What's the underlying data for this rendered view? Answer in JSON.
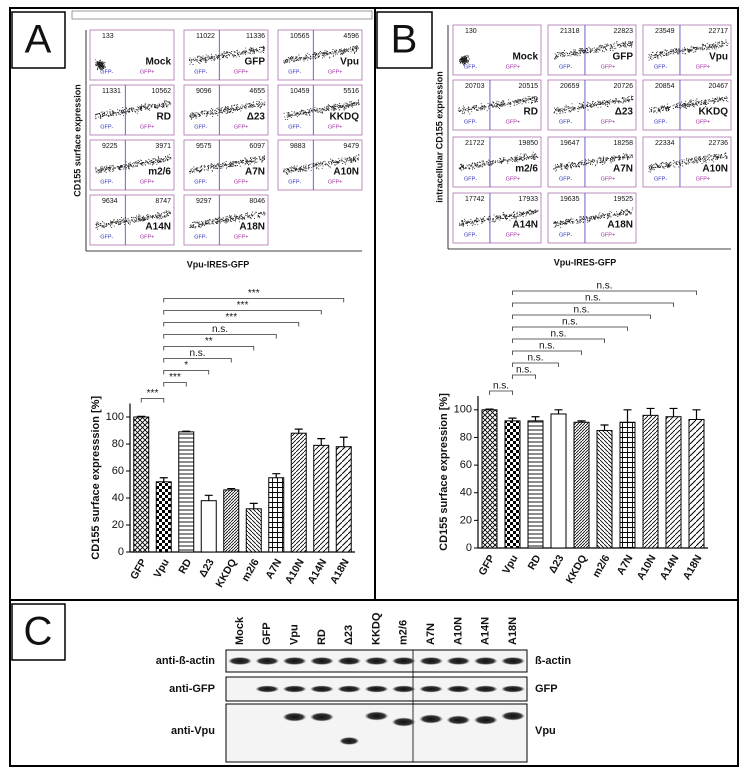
{
  "panels": {
    "a": "A",
    "b": "B",
    "c": "C"
  },
  "flow_A": {
    "y_label": "CD155 surface expression",
    "x_label": "Vpu-IRES-GFP",
    "gate_labels": [
      "GFP-",
      "GFP+"
    ],
    "plots": [
      {
        "name": "Mock",
        "left": 133
      },
      {
        "name": "GFP",
        "left": 11022,
        "right": 11336
      },
      {
        "name": "Vpu",
        "left": 10565,
        "right": 4596
      },
      {
        "name": "RD",
        "left": 11331,
        "right": 10562
      },
      {
        "name": "Δ23",
        "left": 9096,
        "right": 4655
      },
      {
        "name": "KKDQ",
        "left": 10459,
        "right": 5516
      },
      {
        "name": "m2/6",
        "left": 9225,
        "right": 3971
      },
      {
        "name": "A7N",
        "left": 9575,
        "right": 6097
      },
      {
        "name": "A10N",
        "left": 9883,
        "right": 9479
      },
      {
        "name": "A14N",
        "left": 9634,
        "right": 8747
      },
      {
        "name": "A18N",
        "left": 9297,
        "right": 8046
      }
    ]
  },
  "flow_B": {
    "y_label": "intracellular CD155 expression",
    "x_label": "Vpu-IRES-GFP",
    "gate_labels": [
      "GFP-",
      "GFP+"
    ],
    "plots": [
      {
        "name": "Mock",
        "left": 130
      },
      {
        "name": "GFP",
        "left": 21318,
        "right": 22823
      },
      {
        "name": "Vpu",
        "left": 23549,
        "right": 22717
      },
      {
        "name": "RD",
        "left": 20703,
        "right": 20515
      },
      {
        "name": "Δ23",
        "left": 20659,
        "right": 20726
      },
      {
        "name": "KKDQ",
        "left": 20854,
        "right": 20467
      },
      {
        "name": "m2/6",
        "left": 21722,
        "right": 19850
      },
      {
        "name": "A7N",
        "left": 19647,
        "right": 18258
      },
      {
        "name": "A10N",
        "left": 22334,
        "right": 22736
      },
      {
        "name": "A14N",
        "left": 17742,
        "right": 17933
      },
      {
        "name": "A18N",
        "left": 19635,
        "right": 19525
      }
    ]
  },
  "chart_data": [
    {
      "type": "bar",
      "y_label": "CD155 surface expresssion [%]",
      "categories": [
        "GFP",
        "Vpu",
        "RD",
        "Δ23",
        "KKDQ",
        "m2/6",
        "A7N",
        "A10N",
        "A14N",
        "A18N"
      ],
      "values": [
        100,
        52,
        89,
        38,
        46,
        32,
        55,
        88,
        79,
        78
      ],
      "errors": [
        0.5,
        3,
        0.5,
        4,
        1,
        4,
        3,
        3,
        5,
        7
      ],
      "ylim": [
        0,
        110
      ],
      "yticks": [
        0,
        20,
        40,
        60,
        80,
        100
      ],
      "brackets": [
        {
          "from": "GFP",
          "to": "Vpu",
          "label": "***"
        },
        {
          "from": "Vpu",
          "to": "RD",
          "label": "***"
        },
        {
          "from": "Vpu",
          "to": "Δ23",
          "label": "*"
        },
        {
          "from": "Vpu",
          "to": "KKDQ",
          "label": "n.s."
        },
        {
          "from": "Vpu",
          "to": "m2/6",
          "label": "**"
        },
        {
          "from": "Vpu",
          "to": "A7N",
          "label": "n.s."
        },
        {
          "from": "Vpu",
          "to": "A10N",
          "label": "***"
        },
        {
          "from": "Vpu",
          "to": "A14N",
          "label": "***"
        },
        {
          "from": "Vpu",
          "to": "A18N",
          "label": "***"
        }
      ]
    },
    {
      "type": "bar",
      "y_label": "CD155 surface expression [%]",
      "categories": [
        "GFP",
        "Vpu",
        "RD",
        "Δ23",
        "KKDQ",
        "m2/6",
        "A7N",
        "A10N",
        "A14N",
        "A18N"
      ],
      "values": [
        100,
        92,
        92,
        97,
        91,
        85,
        91,
        96,
        95,
        93
      ],
      "errors": [
        0.5,
        2,
        3,
        3,
        1,
        4,
        9,
        5,
        6,
        7
      ],
      "ylim": [
        0,
        110
      ],
      "yticks": [
        0,
        20,
        40,
        60,
        80,
        100
      ],
      "brackets": [
        {
          "from": "GFP",
          "to": "Vpu",
          "label": "n.s."
        },
        {
          "from": "Vpu",
          "to": "RD",
          "label": "n.s."
        },
        {
          "from": "Vpu",
          "to": "Δ23",
          "label": "n.s."
        },
        {
          "from": "Vpu",
          "to": "KKDQ",
          "label": "n.s."
        },
        {
          "from": "Vpu",
          "to": "m2/6",
          "label": "n.s."
        },
        {
          "from": "Vpu",
          "to": "A7N",
          "label": "n.s."
        },
        {
          "from": "Vpu",
          "to": "A10N",
          "label": "n.s."
        },
        {
          "from": "Vpu",
          "to": "A14N",
          "label": "n.s."
        },
        {
          "from": "Vpu",
          "to": "A18N",
          "label": "n.s."
        }
      ]
    }
  ],
  "blot": {
    "lanes": [
      "Mock",
      "GFP",
      "Vpu",
      "RD",
      "Δ23",
      "KKDQ",
      "m2/6",
      "A7N",
      "A10N",
      "A14N",
      "A18N"
    ],
    "rows": [
      {
        "antibody": "anti-ß-actin",
        "protein": "ß-actin"
      },
      {
        "antibody": "anti-GFP",
        "protein": "GFP"
      },
      {
        "antibody": "anti-Vpu",
        "protein": "Vpu"
      }
    ]
  }
}
